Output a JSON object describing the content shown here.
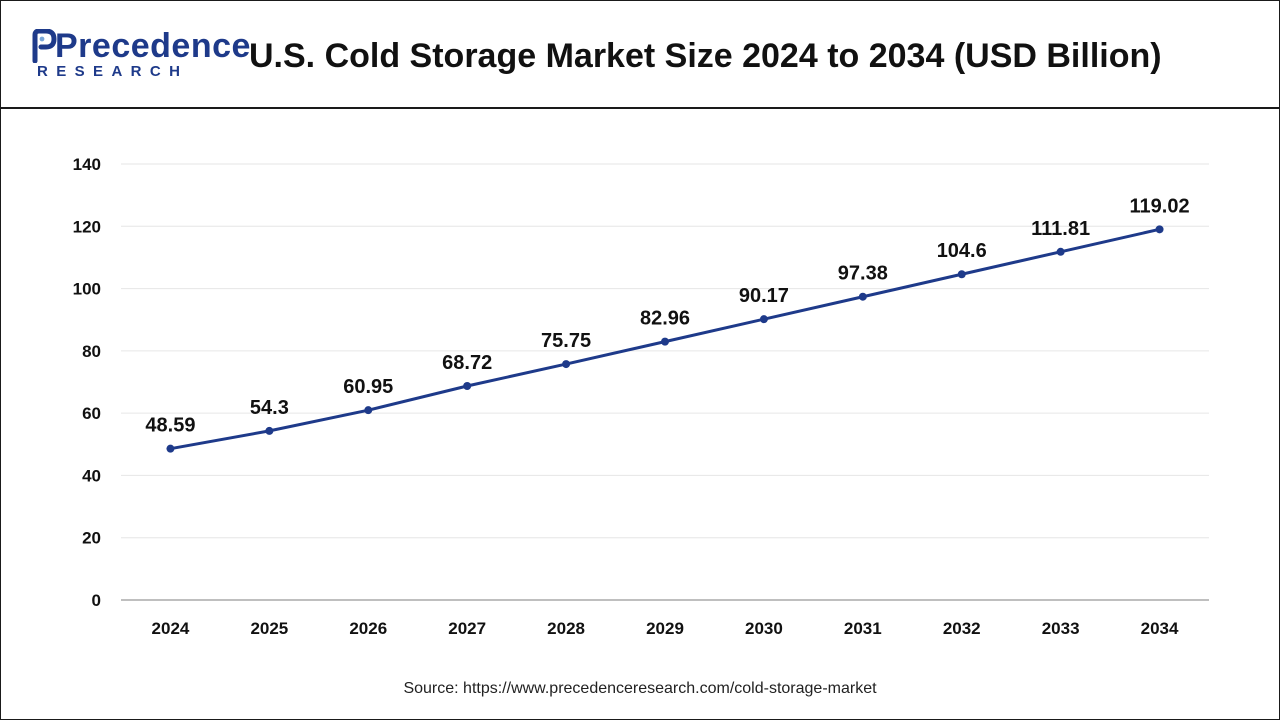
{
  "header": {
    "logo_main": "Precedence",
    "logo_sub": "RESEARCH",
    "title": "U.S. Cold Storage Market Size 2024 to 2034 (USD Billion)"
  },
  "source": "Source: https://www.precedenceresearch.com/cold-storage-market",
  "colors": {
    "line": "#1e3a8a",
    "brand": "#1e3a8a",
    "grid": "#e6e6e6",
    "axis": "#999999"
  },
  "icons": {
    "logo_mark": "precedence-logo-icon"
  },
  "chart_data": {
    "type": "line",
    "categories": [
      "2024",
      "2025",
      "2026",
      "2027",
      "2028",
      "2029",
      "2030",
      "2031",
      "2032",
      "2033",
      "2034"
    ],
    "series": [
      {
        "values": [
          48.59,
          54.3,
          60.95,
          68.72,
          75.75,
          82.96,
          90.17,
          97.38,
          104.6,
          111.81,
          119.02
        ],
        "labels": [
          "48.59",
          "54.3",
          "60.95",
          "68.72",
          "75.75",
          "82.96",
          "90.17",
          "97.38",
          "104.6",
          "111.81",
          "119.02"
        ]
      }
    ],
    "ylim": [
      0,
      140
    ],
    "yticks": [
      "0",
      "20",
      "40",
      "60",
      "80",
      "100",
      "120",
      "140"
    ],
    "grid": true,
    "xlabel": "",
    "ylabel": ""
  }
}
